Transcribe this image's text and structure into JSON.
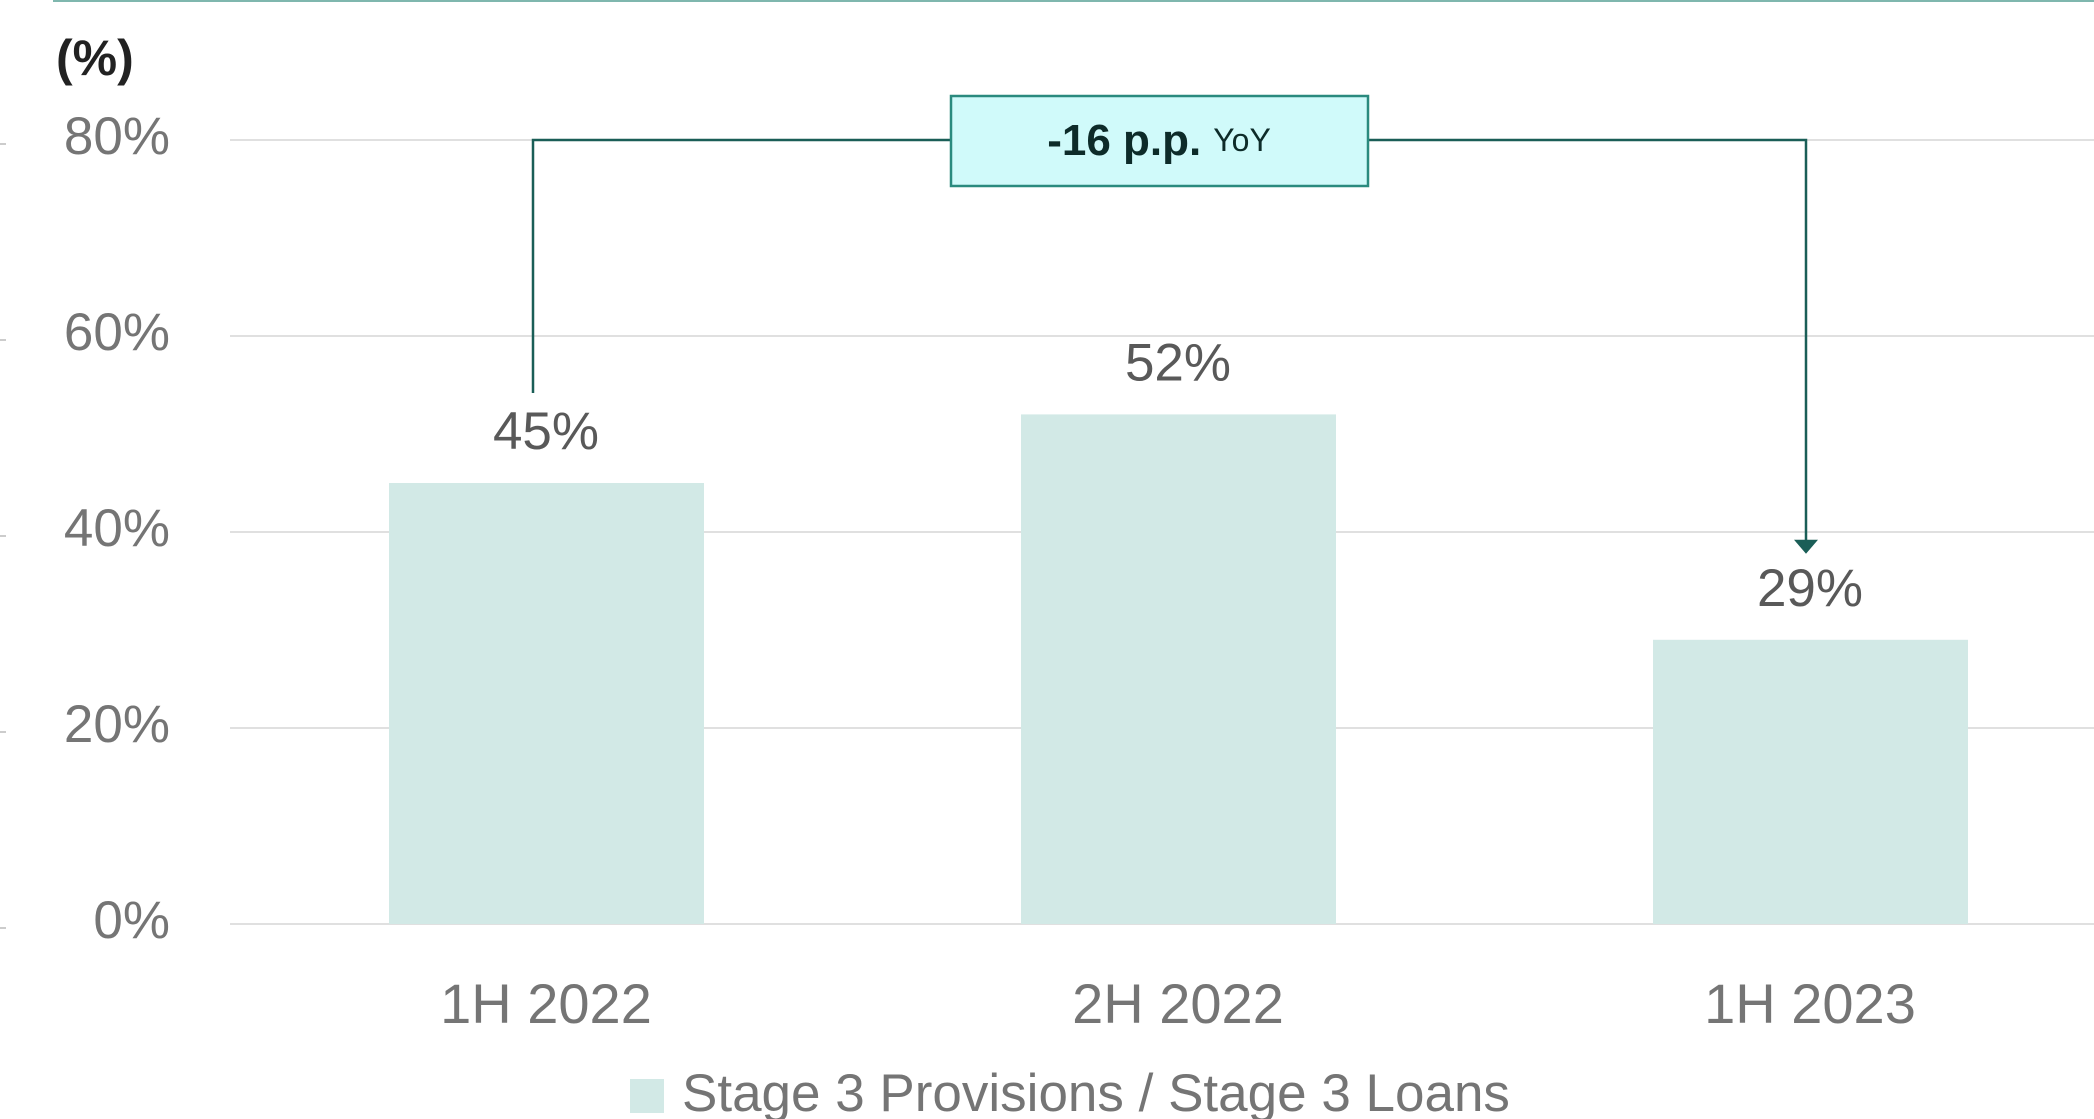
{
  "chart_data": {
    "type": "bar",
    "y_unit_label": "(%)",
    "categories": [
      "1H 2022",
      "2H 2022",
      "1H 2023"
    ],
    "series": [
      {
        "name": "Stage 3 Provisions / Stage 3 Loans",
        "color": "#d2e9e6",
        "values": [
          45,
          52,
          29
        ],
        "value_labels": [
          "45%",
          "52%",
          "29%"
        ]
      }
    ],
    "ylim": [
      0,
      80
    ],
    "yticks": [
      {
        "value": 0,
        "label": "0%"
      },
      {
        "value": 20,
        "label": "20%"
      },
      {
        "value": 40,
        "label": "40%"
      },
      {
        "value": 60,
        "label": "60%"
      },
      {
        "value": 80,
        "label": "80%"
      }
    ],
    "grid": true,
    "legend": "bottom",
    "annotation": {
      "main": "-16 p.p.",
      "suffix": "YoY"
    }
  }
}
